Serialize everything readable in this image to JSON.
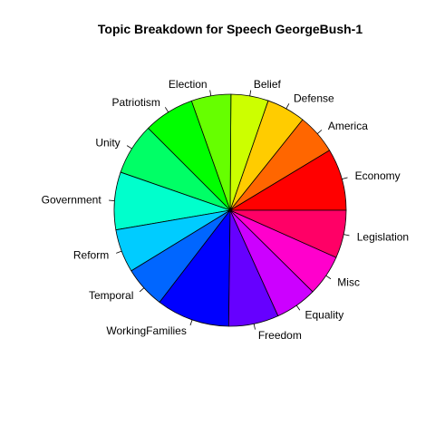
{
  "chart_data": {
    "type": "pie",
    "title": "Topic Breakdown for Speech GeorgeBush-1",
    "slices": [
      {
        "label": "Economy",
        "value": 8.3,
        "color": "#FF0000"
      },
      {
        "label": "America",
        "value": 5.4,
        "color": "#FF6600"
      },
      {
        "label": "Defense",
        "value": 5.2,
        "color": "#FFCC00"
      },
      {
        "label": "Belief",
        "value": 5.0,
        "color": "#CCFF00"
      },
      {
        "label": "Election",
        "value": 5.3,
        "color": "#66FF00"
      },
      {
        "label": "Patriotism",
        "value": 6.8,
        "color": "#00FF00"
      },
      {
        "label": "Unity",
        "value": 6.9,
        "color": "#00FF66"
      },
      {
        "label": "Government",
        "value": 7.7,
        "color": "#00FFCC"
      },
      {
        "label": "Reform",
        "value": 5.8,
        "color": "#00CCFF"
      },
      {
        "label": "Temporal",
        "value": 5.6,
        "color": "#0066FF"
      },
      {
        "label": "WorkingFamilies",
        "value": 9.8,
        "color": "#0000FF"
      },
      {
        "label": "Freedom",
        "value": 6.7,
        "color": "#6600FF"
      },
      {
        "label": "Equality",
        "value": 5.6,
        "color": "#CC00FF"
      },
      {
        "label": "Misc",
        "value": 5.5,
        "color": "#FF00CC"
      },
      {
        "label": "Legislation",
        "value": 6.4,
        "color": "#FF0066"
      }
    ]
  }
}
